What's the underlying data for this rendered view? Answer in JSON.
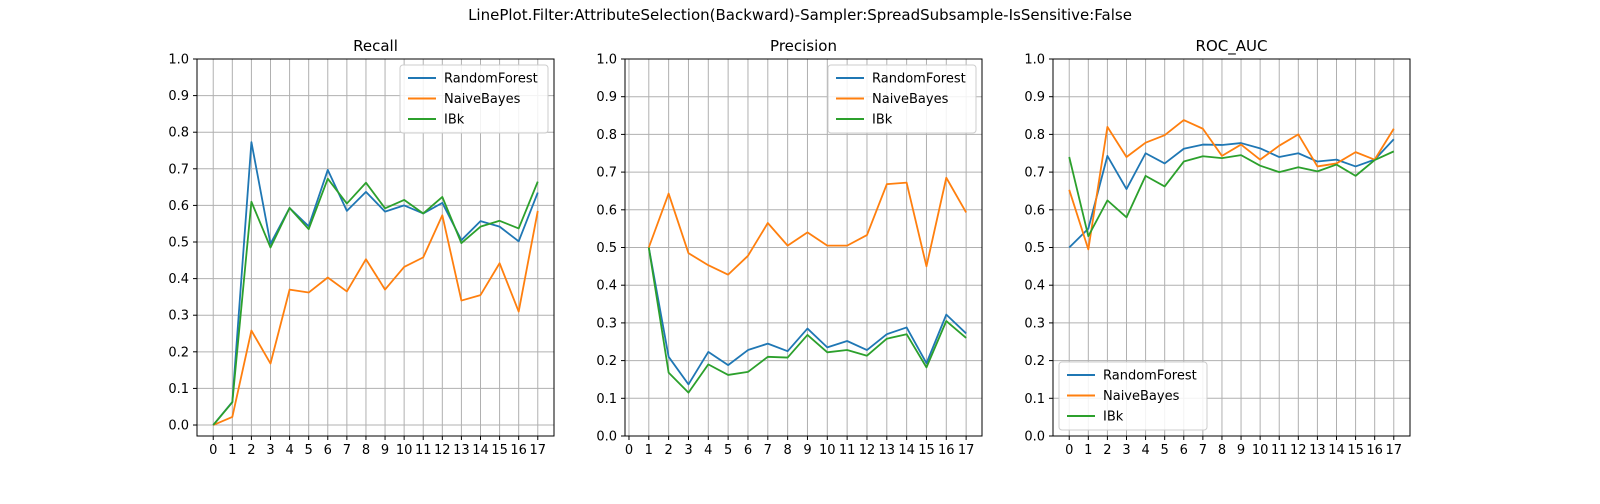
{
  "figure": {
    "suptitle": "LinePlot.Filter:AttributeSelection(Backward)-Sampler:SpreadSubsample-IsSensitive:False"
  },
  "chart_data": [
    {
      "type": "line",
      "title": "Recall",
      "xlabel": "",
      "ylabel": "",
      "x": [
        0,
        1,
        2,
        3,
        4,
        5,
        6,
        7,
        8,
        9,
        10,
        11,
        12,
        13,
        14,
        15,
        16,
        17
      ],
      "xticks": [
        "0",
        "1",
        "2",
        "3",
        "4",
        "5",
        "6",
        "7",
        "8",
        "9",
        "10",
        "11",
        "12",
        "13",
        "14",
        "15",
        "16",
        "17"
      ],
      "xlim": [
        -0.85,
        17.85
      ],
      "ylim": [
        -0.03,
        1.0
      ],
      "yticks": [
        "0.0",
        "0.1",
        "0.2",
        "0.3",
        "0.4",
        "0.5",
        "0.6",
        "0.7",
        "0.8",
        "0.9",
        "1.0"
      ],
      "grid": true,
      "legend": "upper right",
      "series": [
        {
          "name": "RandomForest",
          "color": "#1f77b4",
          "values": [
            0.0,
            0.063,
            0.773,
            0.495,
            0.593,
            0.543,
            0.697,
            0.585,
            0.637,
            0.583,
            0.6,
            0.578,
            0.607,
            0.505,
            0.557,
            0.542,
            0.502,
            0.635
          ]
        },
        {
          "name": "NaiveBayes",
          "color": "#ff7f0e",
          "values": [
            0.0,
            0.022,
            0.258,
            0.168,
            0.37,
            0.362,
            0.403,
            0.365,
            0.453,
            0.37,
            0.432,
            0.458,
            0.573,
            0.34,
            0.355,
            0.442,
            0.31,
            0.585
          ]
        },
        {
          "name": "IBk",
          "color": "#2ca02c",
          "values": [
            0.0,
            0.062,
            0.61,
            0.485,
            0.593,
            0.535,
            0.673,
            0.605,
            0.662,
            0.592,
            0.615,
            0.578,
            0.623,
            0.497,
            0.542,
            0.558,
            0.537,
            0.665
          ]
        }
      ]
    },
    {
      "type": "line",
      "title": "Precision",
      "xlabel": "",
      "ylabel": "",
      "x": [
        1,
        2,
        3,
        4,
        5,
        6,
        7,
        8,
        9,
        10,
        11,
        12,
        13,
        14,
        15,
        16,
        17
      ],
      "xticks": [
        "0",
        "1",
        "2",
        "3",
        "4",
        "5",
        "6",
        "7",
        "8",
        "9",
        "10",
        "11",
        "12",
        "13",
        "14",
        "15",
        "16",
        "17"
      ],
      "xlim": [
        -0.2,
        17.8
      ],
      "ylim": [
        0.0,
        1.0
      ],
      "yticks": [
        "0.0",
        "0.1",
        "0.2",
        "0.3",
        "0.4",
        "0.5",
        "0.6",
        "0.7",
        "0.8",
        "0.9",
        "1.0"
      ],
      "grid": true,
      "legend": "upper right",
      "series": [
        {
          "name": "RandomForest",
          "color": "#1f77b4",
          "values": [
            0.5,
            0.21,
            0.137,
            0.223,
            0.188,
            0.228,
            0.245,
            0.225,
            0.285,
            0.235,
            0.252,
            0.228,
            0.27,
            0.288,
            0.193,
            0.322,
            0.272
          ]
        },
        {
          "name": "NaiveBayes",
          "color": "#ff7f0e",
          "values": [
            0.5,
            0.643,
            0.485,
            0.453,
            0.428,
            0.478,
            0.565,
            0.505,
            0.54,
            0.505,
            0.505,
            0.533,
            0.668,
            0.672,
            0.45,
            0.685,
            0.593
          ]
        },
        {
          "name": "IBk",
          "color": "#2ca02c",
          "values": [
            0.5,
            0.168,
            0.115,
            0.19,
            0.162,
            0.17,
            0.21,
            0.208,
            0.268,
            0.222,
            0.228,
            0.213,
            0.258,
            0.27,
            0.182,
            0.305,
            0.26
          ]
        }
      ]
    },
    {
      "type": "line",
      "title": "ROC_AUC",
      "xlabel": "",
      "ylabel": "",
      "x": [
        0,
        1,
        2,
        3,
        4,
        5,
        6,
        7,
        8,
        9,
        10,
        11,
        12,
        13,
        14,
        15,
        16,
        17
      ],
      "xticks": [
        "0",
        "1",
        "2",
        "3",
        "4",
        "5",
        "6",
        "7",
        "8",
        "9",
        "10",
        "11",
        "12",
        "13",
        "14",
        "15",
        "16",
        "17"
      ],
      "xlim": [
        -0.85,
        17.85
      ],
      "ylim": [
        0.0,
        1.0
      ],
      "yticks": [
        "0.0",
        "0.1",
        "0.2",
        "0.3",
        "0.4",
        "0.5",
        "0.6",
        "0.7",
        "0.8",
        "0.9",
        "1.0"
      ],
      "grid": true,
      "legend": "lower left",
      "series": [
        {
          "name": "RandomForest",
          "color": "#1f77b4",
          "values": [
            0.5,
            0.55,
            0.743,
            0.655,
            0.75,
            0.723,
            0.762,
            0.773,
            0.772,
            0.777,
            0.763,
            0.74,
            0.75,
            0.728,
            0.733,
            0.715,
            0.733,
            0.787
          ]
        },
        {
          "name": "NaiveBayes",
          "color": "#ff7f0e",
          "values": [
            0.653,
            0.495,
            0.82,
            0.74,
            0.778,
            0.798,
            0.838,
            0.815,
            0.743,
            0.773,
            0.733,
            0.77,
            0.8,
            0.715,
            0.723,
            0.753,
            0.733,
            0.815
          ]
        },
        {
          "name": "IBk",
          "color": "#2ca02c",
          "values": [
            0.74,
            0.53,
            0.625,
            0.58,
            0.69,
            0.662,
            0.728,
            0.742,
            0.737,
            0.745,
            0.717,
            0.7,
            0.713,
            0.702,
            0.72,
            0.69,
            0.732,
            0.755
          ]
        }
      ]
    }
  ]
}
